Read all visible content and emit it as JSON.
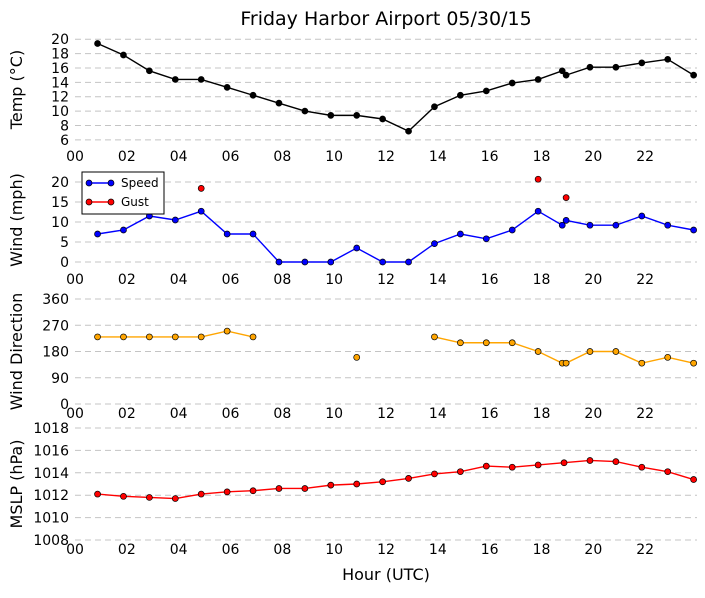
{
  "chart_data": {
    "title": "Friday Harbor Airport 05/30/15",
    "xlabel": "Hour (UTC)",
    "xlim": [
      0,
      24
    ],
    "xticks": [
      0,
      2,
      4,
      6,
      8,
      10,
      12,
      14,
      16,
      18,
      20,
      22
    ],
    "xtick_labels": [
      "00",
      "02",
      "04",
      "06",
      "08",
      "10",
      "12",
      "14",
      "16",
      "18",
      "20",
      "22"
    ],
    "panels": [
      {
        "type": "line",
        "ylabel": "Temp (°C)",
        "ylim": [
          5,
          21
        ],
        "yticks": [
          6,
          8,
          10,
          12,
          14,
          16,
          18,
          20
        ],
        "grid": true,
        "series": [
          {
            "color": "#000000",
            "line": true,
            "x": [
              0.87,
              1.87,
              2.87,
              3.87,
              4.87,
              5.87,
              6.87,
              7.87,
              8.87,
              9.87,
              10.87,
              11.87,
              12.87,
              13.87,
              14.87,
              15.87,
              16.87,
              17.87,
              18.8,
              18.95,
              19.87,
              20.87,
              21.87,
              22.87,
              23.87
            ],
            "y": [
              19.4,
              17.8,
              15.6,
              14.4,
              14.4,
              13.3,
              12.2,
              11.1,
              10.0,
              9.4,
              9.4,
              8.9,
              7.2,
              10.6,
              12.2,
              12.8,
              13.9,
              14.4,
              15.6,
              15.0,
              16.1,
              16.1,
              16.7,
              17.2,
              15.0
            ]
          }
        ]
      },
      {
        "type": "line",
        "ylabel": "Wind (mph)",
        "ylim": [
          -2,
          23
        ],
        "yticks": [
          0,
          5,
          10,
          15,
          20
        ],
        "grid": true,
        "legend": {
          "placement": "top-left",
          "entries": [
            "Speed",
            "Gust"
          ]
        },
        "series": [
          {
            "name": "Speed",
            "color": "#0000ff",
            "line": true,
            "x": [
              0.87,
              1.87,
              2.87,
              3.87,
              4.87,
              5.87,
              6.87,
              7.87,
              8.87,
              9.87,
              10.87,
              11.87,
              12.87,
              13.87,
              14.87,
              15.87,
              16.87,
              17.87,
              18.8,
              18.95,
              19.87,
              20.87,
              21.87,
              22.87,
              23.87
            ],
            "y": [
              7,
              8,
              11.5,
              10.5,
              12.7,
              7,
              7,
              0,
              0,
              0,
              3.5,
              0,
              0,
              4.6,
              7,
              5.8,
              8,
              12.7,
              9.2,
              10.4,
              9.2,
              9.2,
              11.5,
              9.2,
              8
            ]
          },
          {
            "name": "Gust",
            "color": "#ff0000",
            "line": false,
            "x": [
              4.87,
              17.87,
              18.95
            ],
            "y": [
              18.4,
              20.7,
              16.1
            ]
          }
        ]
      },
      {
        "type": "line",
        "ylabel": "Wind Direction",
        "ylim": [
          0,
          360
        ],
        "yticks": [
          0,
          90,
          180,
          270,
          360
        ],
        "grid": true,
        "series": [
          {
            "color": "#ffa500",
            "line": true,
            "segments": [
              {
                "x": [
                  0.87,
                  1.87,
                  2.87,
                  3.87,
                  4.87,
                  5.87,
                  6.87
                ],
                "y": [
                  230,
                  230,
                  230,
                  230,
                  230,
                  250,
                  230
                ]
              },
              {
                "x": [
                  10.87
                ],
                "y": [
                  160
                ]
              },
              {
                "x": [
                  13.87,
                  14.87,
                  15.87,
                  16.87,
                  17.87,
                  18.8,
                  18.95,
                  19.87,
                  20.87,
                  21.87,
                  22.87,
                  23.87
                ],
                "y": [
                  230,
                  210,
                  210,
                  210,
                  180,
                  140,
                  140,
                  180,
                  180,
                  140,
                  160,
                  140
                ]
              }
            ]
          }
        ]
      },
      {
        "type": "line",
        "ylabel": "MSLP (hPa)",
        "ylim": [
          1008,
          1018
        ],
        "yticks": [
          1008,
          1010,
          1012,
          1014,
          1016,
          1018
        ],
        "grid": true,
        "series": [
          {
            "color": "#ff0000",
            "line": true,
            "x": [
              0.87,
              1.87,
              2.87,
              3.87,
              4.87,
              5.87,
              6.87,
              7.87,
              8.87,
              9.87,
              10.87,
              11.87,
              12.87,
              13.87,
              14.87,
              15.87,
              16.87,
              17.87,
              18.87,
              19.87,
              20.87,
              21.87,
              22.87,
              23.87
            ],
            "y": [
              1012.1,
              1011.9,
              1011.8,
              1011.7,
              1012.1,
              1012.3,
              1012.4,
              1012.6,
              1012.6,
              1012.9,
              1013.0,
              1013.2,
              1013.5,
              1013.9,
              1014.1,
              1014.6,
              1014.5,
              1014.7,
              1014.9,
              1015.1,
              1015.0,
              1014.5,
              1014.1,
              1013.4
            ]
          }
        ]
      }
    ]
  }
}
